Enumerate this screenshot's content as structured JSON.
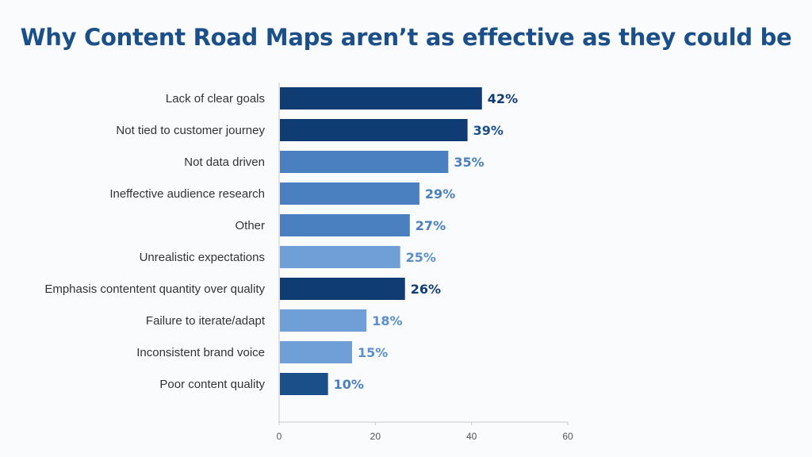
{
  "chart_data": {
    "type": "bar",
    "orientation": "horizontal",
    "title": "Why Content Road Maps aren’t as effective as they could be",
    "categories": [
      "Lack of clear goals",
      "Not tied to customer journey",
      "Not data driven",
      "Ineffective audience research",
      "Other",
      "Unrealistic expectations",
      "Emphasis contentent quantity over quality",
      "Failure to iterate/adapt",
      "Inconsistent brand voice",
      "Poor content quality"
    ],
    "values": [
      42,
      39,
      35,
      29,
      27,
      25,
      26,
      18,
      15,
      10
    ],
    "value_labels": [
      "42%",
      "39%",
      "35%",
      "29%",
      "27%",
      "25%",
      "26%",
      "18%",
      "15%",
      "10%"
    ],
    "bar_colors": [
      "#0f3d73",
      "#0f3d73",
      "#4a7fc0",
      "#4a7fc0",
      "#4a7fc0",
      "#6f9fd6",
      "#0f3d73",
      "#6f9fd6",
      "#6f9fd6",
      "#1a4f8a"
    ],
    "label_colors": [
      "#0f3d73",
      "#1a4f8a",
      "#4a7fc0",
      "#4a7fc0",
      "#4a7fc0",
      "#5b8fcc",
      "#0f3d73",
      "#5b8fcc",
      "#5b8fcc",
      "#4a7fc0"
    ],
    "xlim": [
      0,
      60
    ],
    "xticks": [
      "0",
      "20",
      "40",
      "60"
    ],
    "xlabel": "",
    "ylabel": "",
    "grid": false,
    "legend": "none"
  }
}
